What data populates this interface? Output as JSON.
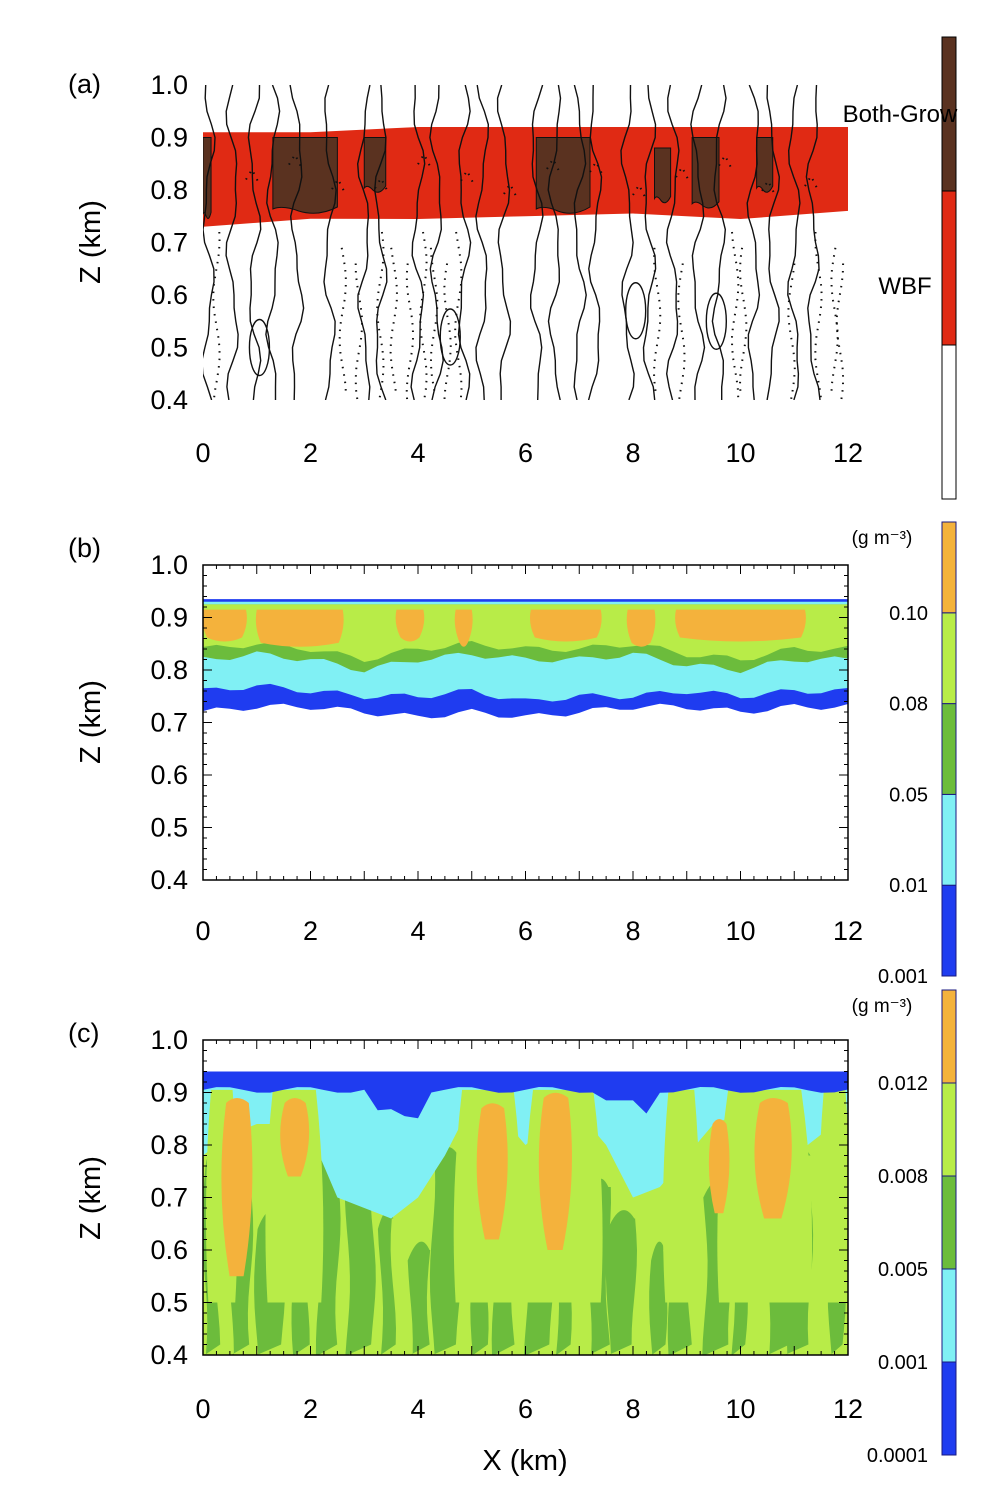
{
  "chart_data": [
    {
      "type": "heatmap",
      "panel_label": "(a)",
      "xlabel": "",
      "ylabel": "Z (km)",
      "xlim": [
        0,
        12
      ],
      "ylim": [
        0.4,
        1.0
      ],
      "xticks": [
        "0",
        "2",
        "4",
        "6",
        "8",
        "10",
        "12"
      ],
      "yticks": [
        "0.4",
        "0.5",
        "0.6",
        "0.7",
        "0.8",
        "0.9",
        "1.0"
      ],
      "colorbar": {
        "type": "categorical",
        "categories": [
          {
            "label": "Both-Grow",
            "color": "#5a3220"
          },
          {
            "label": "WBF",
            "color": "#e02a14"
          },
          {
            "label": "",
            "color": "#ffffff"
          }
        ]
      },
      "layer": {
        "color": "#e02a14",
        "top_km": [
          0.91,
          0.91,
          0.92,
          0.92,
          0.92,
          0.92,
          0.92
        ],
        "bottom_km": [
          0.73,
          0.74,
          0.75,
          0.75,
          0.75,
          0.75,
          0.76
        ]
      },
      "both_grow_regions": [
        {
          "x": [
            0.0,
            0.15
          ],
          "z": [
            0.75,
            0.9
          ]
        },
        {
          "x": [
            1.3,
            2.5
          ],
          "z": [
            0.76,
            0.9
          ]
        },
        {
          "x": [
            3.0,
            3.4
          ],
          "z": [
            0.8,
            0.9
          ]
        },
        {
          "x": [
            6.2,
            7.2
          ],
          "z": [
            0.76,
            0.9
          ]
        },
        {
          "x": [
            8.4,
            8.7
          ],
          "z": [
            0.78,
            0.88
          ]
        },
        {
          "x": [
            9.1,
            9.6
          ],
          "z": [
            0.77,
            0.9
          ]
        },
        {
          "x": [
            10.3,
            10.6
          ],
          "z": [
            0.8,
            0.9
          ]
        }
      ]
    },
    {
      "type": "heatmap",
      "panel_label": "(b)",
      "xlabel": "",
      "ylabel": "Z (km)",
      "xlim": [
        0,
        12
      ],
      "ylim": [
        0.4,
        1.0
      ],
      "xticks": [
        "0",
        "2",
        "4",
        "6",
        "8",
        "10",
        "12"
      ],
      "yticks": [
        "0.4",
        "0.5",
        "0.6",
        "0.7",
        "0.8",
        "0.9",
        "1.0"
      ],
      "colorbar": {
        "unit": "(g m⁻³)",
        "levels": [
          "0.001",
          "0.01",
          "0.05",
          "0.08",
          "0.10"
        ],
        "colors": [
          "#1f3cf0",
          "#80f0f4",
          "#6cbc3c",
          "#b8ec48",
          "#f4b23c"
        ]
      },
      "bands_z_km": {
        "x": [
          0,
          1,
          2,
          3,
          4,
          5,
          6,
          7,
          8,
          9,
          10,
          11,
          12
        ],
        "top_blue": [
          0.935,
          0.935,
          0.935,
          0.935,
          0.935,
          0.935,
          0.935,
          0.935,
          0.935,
          0.935,
          0.935,
          0.935,
          0.935
        ],
        "cyan_top": [
          0.93,
          0.93,
          0.93,
          0.93,
          0.93,
          0.93,
          0.93,
          0.93,
          0.93,
          0.93,
          0.93,
          0.93,
          0.93
        ],
        "green_bottom": [
          0.82,
          0.83,
          0.82,
          0.8,
          0.82,
          0.83,
          0.82,
          0.82,
          0.83,
          0.81,
          0.8,
          0.82,
          0.82
        ],
        "orange_bottom": [
          0.86,
          0.87,
          0.88,
          0.86,
          0.87,
          0.88,
          0.86,
          0.87,
          0.88,
          0.85,
          0.86,
          0.87,
          0.87
        ],
        "cyan_bottom": [
          0.76,
          0.77,
          0.76,
          0.75,
          0.75,
          0.76,
          0.74,
          0.75,
          0.75,
          0.76,
          0.75,
          0.76,
          0.76
        ],
        "blue_bottom": [
          0.72,
          0.73,
          0.73,
          0.72,
          0.71,
          0.72,
          0.71,
          0.72,
          0.73,
          0.73,
          0.72,
          0.73,
          0.73
        ]
      }
    },
    {
      "type": "heatmap",
      "panel_label": "(c)",
      "xlabel": "X (km)",
      "ylabel": "Z (km)",
      "xlim": [
        0,
        12
      ],
      "ylim": [
        0.4,
        1.0
      ],
      "xticks": [
        "0",
        "2",
        "4",
        "6",
        "8",
        "10",
        "12"
      ],
      "yticks": [
        "0.4",
        "0.5",
        "0.6",
        "0.7",
        "0.8",
        "0.9",
        "1.0"
      ],
      "colorbar": {
        "unit": "(g m⁻³)",
        "levels": [
          "0.0001",
          "0.001",
          "0.005",
          "0.008",
          "0.012"
        ],
        "colors": [
          "#1f3cf0",
          "#80f0f4",
          "#6cbc3c",
          "#b8ec48",
          "#f4b23c"
        ]
      }
    }
  ]
}
